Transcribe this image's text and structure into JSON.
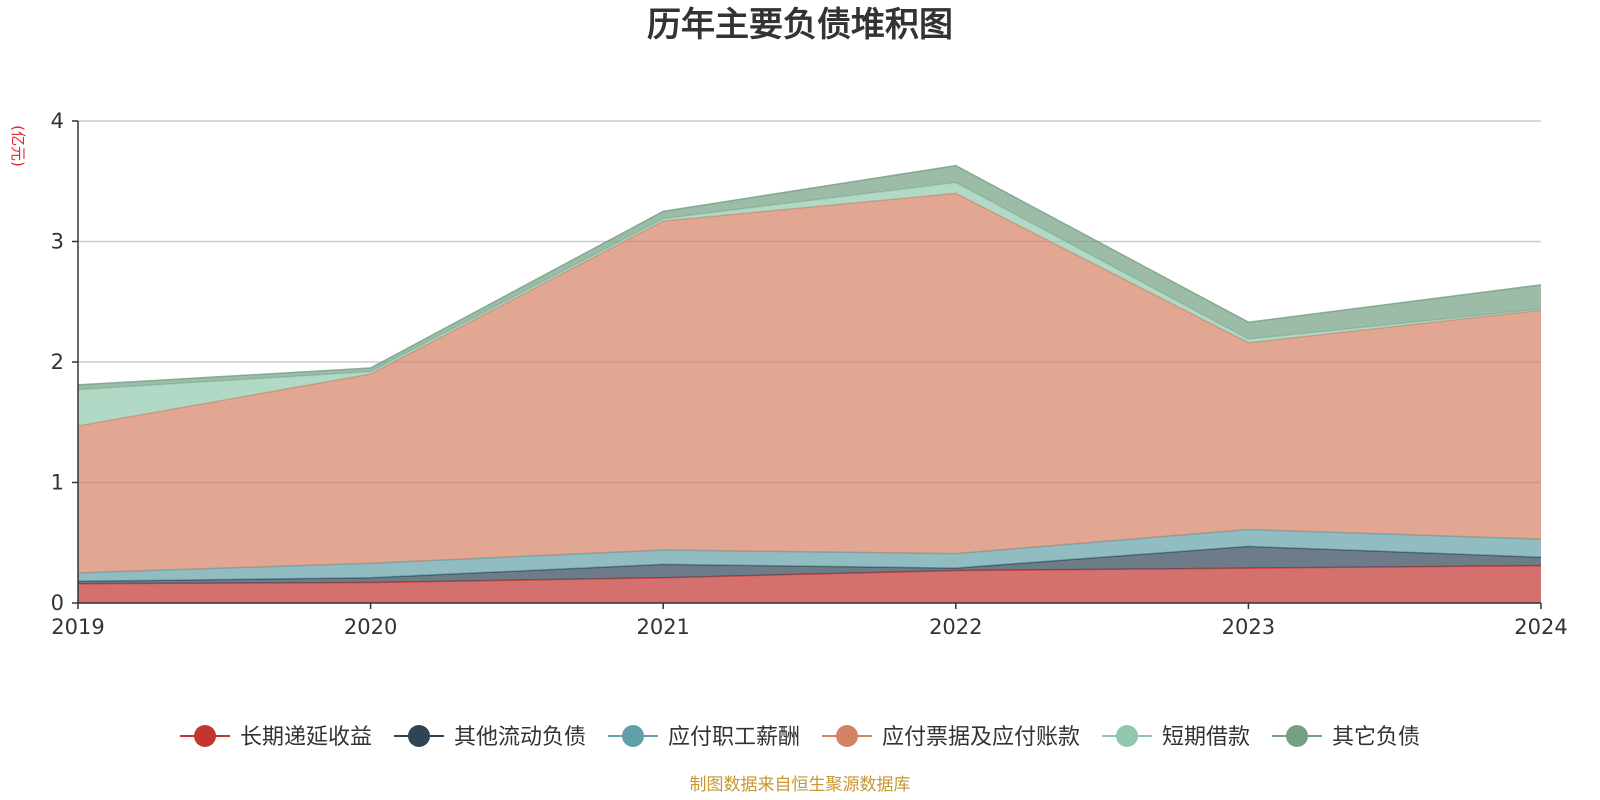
{
  "chart_data": {
    "type": "area",
    "stacked": true,
    "title": "历年主要负债堆积图",
    "unit_label": "(亿元)",
    "categories": [
      "2019",
      "2020",
      "2021",
      "2022",
      "2023",
      "2024"
    ],
    "yticks": [
      "0",
      "1",
      "2",
      "3",
      "4"
    ],
    "ylim": [
      0,
      4
    ],
    "grid": true,
    "legend_position": "bottom",
    "series": [
      {
        "name": "长期递延收益",
        "color": "#c23531",
        "values": [
          0.16,
          0.17,
          0.21,
          0.27,
          0.29,
          0.31
        ]
      },
      {
        "name": "其他流动负债",
        "color": "#2f4554",
        "values": [
          0.02,
          0.04,
          0.11,
          0.02,
          0.18,
          0.07
        ]
      },
      {
        "name": "应付职工薪酬",
        "color": "#61a0a8",
        "values": [
          0.07,
          0.12,
          0.12,
          0.12,
          0.14,
          0.15
        ]
      },
      {
        "name": "应付票据及应付账款",
        "color": "#d48265",
        "values": [
          1.22,
          1.57,
          2.73,
          2.99,
          1.55,
          1.9
        ]
      },
      {
        "name": "短期借款",
        "color": "#91c7ae",
        "values": [
          0.3,
          0.02,
          0.02,
          0.09,
          0.03,
          0.01
        ]
      },
      {
        "name": "其它负债",
        "color": "#749f83",
        "values": [
          0.04,
          0.03,
          0.06,
          0.14,
          0.14,
          0.2
        ]
      }
    ]
  },
  "footer": {
    "source": "制图数据来自恒生聚源数据库"
  }
}
